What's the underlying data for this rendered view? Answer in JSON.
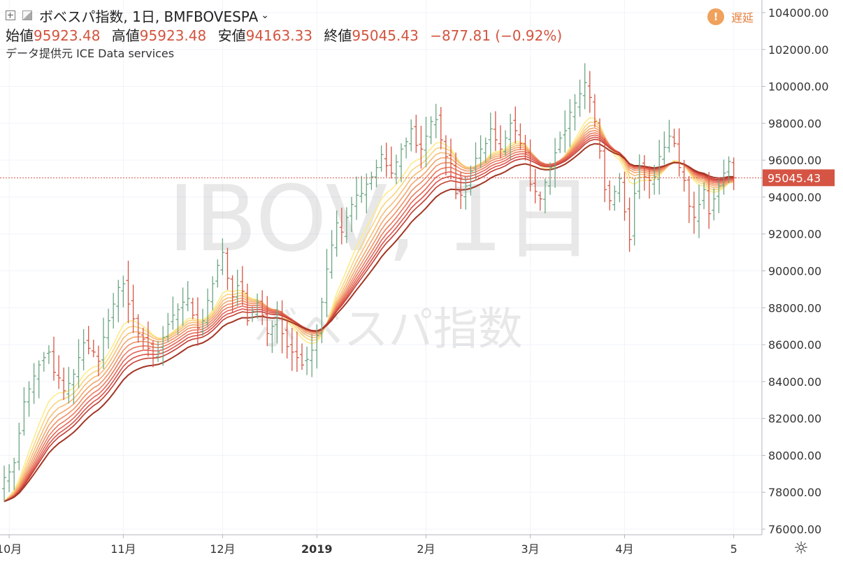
{
  "legend": {
    "symbol_title": "ボベスパ指数, 1日, BMFBOVESPA",
    "ohlc": {
      "open_label": "始値",
      "open_value": "95923.48",
      "high_label": "高値",
      "high_value": "95923.48",
      "low_label": "安値",
      "low_value": "94163.33",
      "close_label": "終値",
      "close_value": "95045.43",
      "change_value": "−877.81 (−0.92%)"
    },
    "data_provider": "データ提供元 ICE Data services"
  },
  "delay_badge": {
    "icon": "!",
    "label": "遅延"
  },
  "watermark": {
    "line1": "IBOV, 1日",
    "line2": "ボベスパ指数"
  },
  "icons": {
    "settings": "gear-icon",
    "add": "plus-box-icon",
    "flag": "flag-icon",
    "dropdown": "chevron-down-icon"
  },
  "colors": {
    "up": "#6ba583",
    "down": "#d75442",
    "ribbon": [
      "#fdeb8a",
      "#fad47f",
      "#f7bd76",
      "#f3a76e",
      "#ef9166",
      "#ea7b5e",
      "#e46657",
      "#db5249",
      "#c43f33",
      "#a33524"
    ],
    "price_tag": "#d55443"
  },
  "chart_data": {
    "type": "ohlc",
    "ylim": [
      76000,
      105000
    ],
    "y_ticks": [
      "104000.00",
      "102000.00",
      "100000.00",
      "98000.00",
      "96000.00",
      "94000.00",
      "92000.00",
      "90000.00",
      "88000.00",
      "86000.00",
      "84000.00",
      "82000.00",
      "80000.00",
      "78000.00",
      "76000.00"
    ],
    "x_ticks": [
      {
        "label": "10月",
        "index": 1
      },
      {
        "label": "11月",
        "index": 24
      },
      {
        "label": "12月",
        "index": 44
      },
      {
        "label": "2019",
        "index": 63
      },
      {
        "label": "2月",
        "index": 85
      },
      {
        "label": "3月",
        "index": 106
      },
      {
        "label": "4月",
        "index": 125
      },
      {
        "label": "5",
        "index": 147
      }
    ],
    "last_price": "95045.43",
    "close": [
      78800,
      79100,
      79600,
      81200,
      82900,
      83600,
      84300,
      84900,
      85300,
      85600,
      84500,
      84200,
      83500,
      83900,
      84400,
      85300,
      86100,
      85800,
      85600,
      85100,
      86400,
      87300,
      88200,
      89100,
      89300,
      88200,
      87400,
      86600,
      86300,
      85800,
      85300,
      85600,
      86400,
      87100,
      87600,
      87900,
      88300,
      88500,
      87600,
      86900,
      87300,
      88400,
      89300,
      90300,
      91000,
      89600,
      88600,
      89200,
      88900,
      87300,
      87800,
      88300,
      87600,
      86600,
      87000,
      87700,
      86600,
      85900,
      85600,
      85300,
      84900,
      85200,
      85700,
      86500,
      88300,
      90100,
      91400,
      92600,
      92100,
      92900,
      93600,
      94100,
      94200,
      94700,
      95100,
      95600,
      96300,
      95700,
      95300,
      95900,
      96600,
      97000,
      97700,
      96800,
      96600,
      97300,
      98100,
      98200,
      97100,
      96200,
      95800,
      94200,
      94100,
      94600,
      95400,
      96100,
      96600,
      96900,
      97700,
      97100,
      96600,
      97200,
      98000,
      97600,
      96900,
      96400,
      94700,
      94300,
      93900,
      94800,
      95600,
      96400,
      97200,
      97600,
      98600,
      99100,
      99600,
      100200,
      99400,
      98100,
      96500,
      94400,
      93800,
      94300,
      95000,
      93200,
      91700,
      94200,
      95700,
      95100,
      94900,
      95100,
      96200,
      96700,
      97300,
      96900,
      95600,
      94900,
      93500,
      92900,
      93600,
      94400,
      93100,
      93900,
      94600,
      95300,
      95923,
      95045
    ],
    "ribbon_ema_periods": [
      10,
      12,
      14,
      16,
      18,
      20,
      22,
      24,
      26,
      30
    ]
  }
}
